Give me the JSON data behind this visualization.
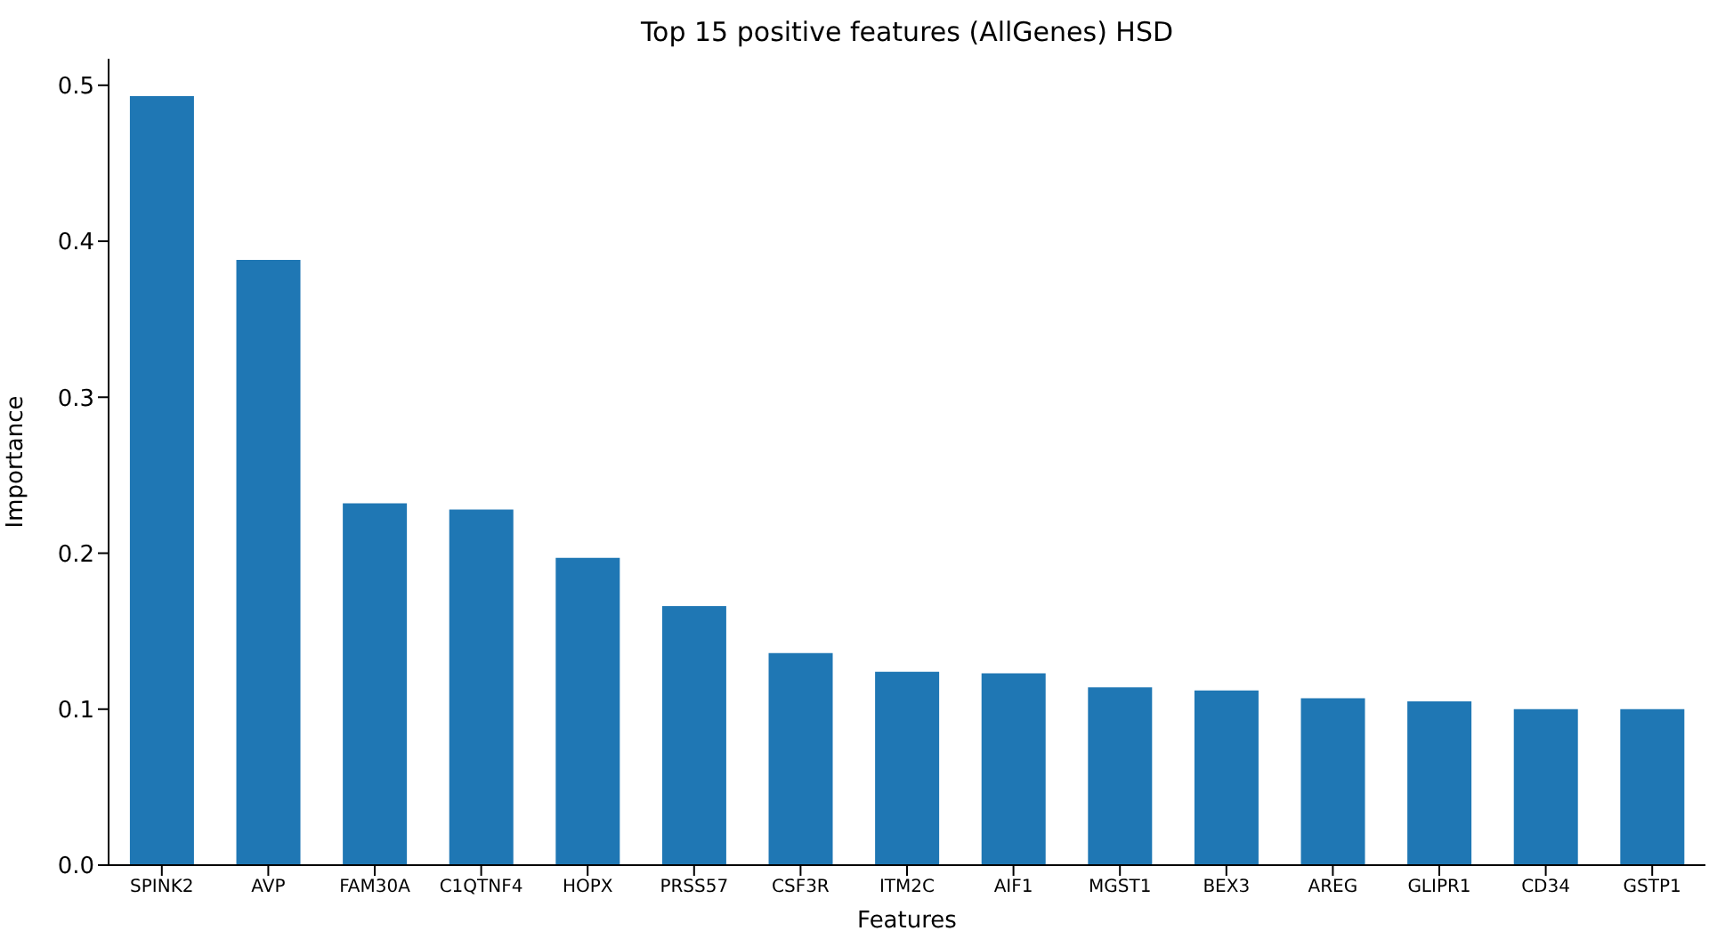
{
  "chart_data": {
    "type": "bar",
    "title": "Top 15 positive features (AllGenes) HSD",
    "xlabel": "Features",
    "ylabel": "Importance",
    "categories": [
      "SPINK2",
      "AVP",
      "FAM30A",
      "C1QTNF4",
      "HOPX",
      "PRSS57",
      "CSF3R",
      "ITM2C",
      "AIF1",
      "MGST1",
      "BEX3",
      "AREG",
      "GLIPR1",
      "CD34",
      "GSTP1"
    ],
    "values": [
      0.493,
      0.388,
      0.232,
      0.228,
      0.197,
      0.166,
      0.136,
      0.124,
      0.123,
      0.114,
      0.112,
      0.107,
      0.105,
      0.1,
      0.1
    ],
    "color": "#1f77b4",
    "ylim": [
      0,
      0.517
    ],
    "yticks": [
      {
        "value": 0,
        "label": "0.0"
      },
      {
        "value": 0.1,
        "label": "0.1"
      },
      {
        "value": 0.2,
        "label": "0.2"
      },
      {
        "value": 0.3,
        "label": "0.3"
      },
      {
        "value": 0.4,
        "label": "0.4"
      },
      {
        "value": 0.5,
        "label": "0.5"
      }
    ],
    "grid": false,
    "legend": false
  }
}
